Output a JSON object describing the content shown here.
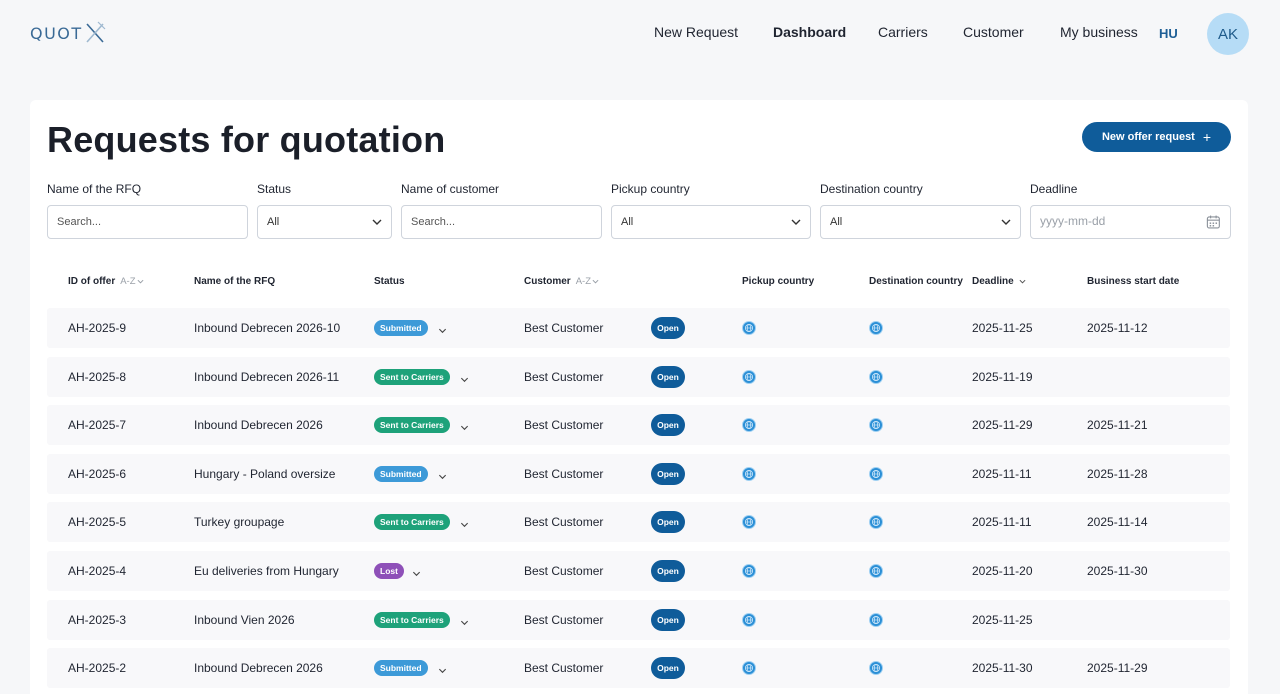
{
  "brand": {
    "logo_text": "QUOT"
  },
  "nav": {
    "items": [
      {
        "label": "New Request",
        "active": false
      },
      {
        "label": "Dashboard",
        "active": true
      },
      {
        "label": "Carriers",
        "active": false
      },
      {
        "label": "Customer",
        "active": false
      },
      {
        "label": "My business",
        "active": false
      }
    ],
    "language": "HU",
    "avatar_initials": "AK"
  },
  "page": {
    "title": "Requests for quotation",
    "new_button_label": "New offer request",
    "new_button_icon": "plus-icon"
  },
  "filters": {
    "rfq_name": {
      "label": "Name of the RFQ",
      "placeholder": "Search..."
    },
    "status": {
      "label": "Status",
      "value": "All"
    },
    "customer": {
      "label": "Name of customer",
      "placeholder": "Search..."
    },
    "pickup": {
      "label": "Pickup country",
      "value": "All"
    },
    "destination": {
      "label": "Destination country",
      "value": "All"
    },
    "deadline": {
      "label": "Deadline",
      "placeholder": "yyyy-mm-dd",
      "icon": "calendar-icon"
    }
  },
  "table": {
    "headers": {
      "id": "ID of offer",
      "id_sort": "A-Z",
      "name": "Name of the RFQ",
      "status": "Status",
      "customer": "Customer",
      "customer_sort": "A-Z",
      "pickup": "Pickup country",
      "destination": "Destination country",
      "deadline": "Deadline",
      "business_start": "Business start date"
    },
    "rows": [
      {
        "id": "AH-2025-9",
        "name": "Inbound Debrecen 2026-10",
        "status": "Submitted",
        "status_type": "submitted",
        "customer": "Best Customer",
        "state": "Open",
        "deadline": "2025-11-25",
        "business_start": "2025-11-12"
      },
      {
        "id": "AH-2025-8",
        "name": "Inbound Debrecen 2026-11",
        "status": "Sent to Carriers",
        "status_type": "sent",
        "customer": "Best Customer",
        "state": "Open",
        "deadline": "2025-11-19",
        "business_start": ""
      },
      {
        "id": "AH-2025-7",
        "name": "Inbound Debrecen 2026",
        "status": "Sent to Carriers",
        "status_type": "sent",
        "customer": "Best Customer",
        "state": "Open",
        "deadline": "2025-11-29",
        "business_start": "2025-11-21"
      },
      {
        "id": "AH-2025-6",
        "name": "Hungary - Poland oversize",
        "status": "Submitted",
        "status_type": "submitted",
        "customer": "Best Customer",
        "state": "Open",
        "deadline": "2025-11-11",
        "business_start": "2025-11-28"
      },
      {
        "id": "AH-2025-5",
        "name": "Turkey groupage",
        "status": "Sent to Carriers",
        "status_type": "sent",
        "customer": "Best Customer",
        "state": "Open",
        "deadline": "2025-11-11",
        "business_start": "2025-11-14"
      },
      {
        "id": "AH-2025-4",
        "name": "Eu deliveries from Hungary",
        "status": "Lost",
        "status_type": "lost",
        "customer": "Best Customer",
        "state": "Open",
        "deadline": "2025-11-20",
        "business_start": "2025-11-30"
      },
      {
        "id": "AH-2025-3",
        "name": "Inbound Vien 2026",
        "status": "Sent to Carriers",
        "status_type": "sent",
        "customer": "Best Customer",
        "state": "Open",
        "deadline": "2025-11-25",
        "business_start": ""
      },
      {
        "id": "AH-2025-2",
        "name": "Inbound Debrecen 2026",
        "status": "Submitted",
        "status_type": "submitted",
        "customer": "Best Customer",
        "state": "Open",
        "deadline": "2025-11-30",
        "business_start": "2025-11-29"
      }
    ]
  },
  "colors": {
    "primary": "#0f5c9a",
    "submitted": "#3d9ad8",
    "sent_to_carriers": "#1ea27a",
    "lost": "#8e50b8",
    "flag": "#2b8fd6"
  }
}
